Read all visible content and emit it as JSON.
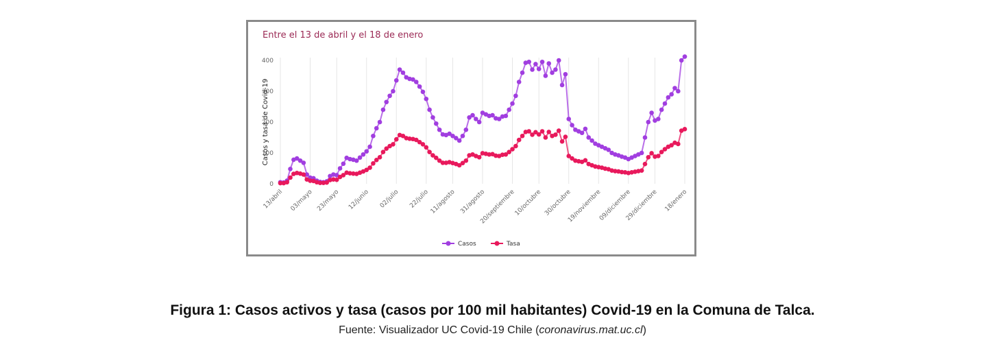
{
  "caption": {
    "title": "Figura 1: Casos activos y tasa (casos por 100 mil habitantes) Covid-19 en la Comuna de Talca.",
    "source_prefix": "Fuente: Visualizador UC Covid-19 Chile (",
    "source_link": "coronavirus.mat.uc.cl",
    "source_suffix": ")"
  },
  "chart_data": {
    "type": "line",
    "title": "Entre el 13 de abril y el 18 de enero",
    "ylabel": "Casos y tasa de Covid-19",
    "xlabel": "",
    "ylim": [
      0,
      400
    ],
    "yticks": [
      0,
      100,
      200,
      300,
      400
    ],
    "grid": "vertical",
    "legend_position": "bottom",
    "xtick_labels": [
      "13/abril",
      "03/mayo",
      "23/mayo",
      "12/junio",
      "02/julio",
      "22/julio",
      "11/agosto",
      "31/agosto",
      "20/septiembre",
      "10/octubre",
      "30/octubre",
      "19/noviembre",
      "09/diciembre",
      "29/diciembre",
      "18/enero"
    ],
    "xtick_index": [
      0,
      7,
      14,
      21,
      28,
      35,
      42,
      49,
      56,
      63,
      70,
      77,
      84,
      91,
      98
    ],
    "series": [
      {
        "name": "Casos",
        "color": "#a13ee0",
        "values": [
          5,
          4,
          10,
          48,
          78,
          82,
          75,
          68,
          30,
          20,
          18,
          10,
          6,
          5,
          8,
          25,
          30,
          28,
          50,
          65,
          84,
          80,
          78,
          75,
          85,
          95,
          105,
          120,
          155,
          180,
          200,
          240,
          265,
          285,
          300,
          335,
          370,
          360,
          345,
          340,
          338,
          330,
          315,
          298,
          275,
          240,
          215,
          195,
          175,
          160,
          158,
          162,
          155,
          148,
          140,
          155,
          175,
          215,
          222,
          210,
          200,
          230,
          225,
          220,
          222,
          212,
          210,
          218,
          220,
          240,
          260,
          285,
          330,
          360,
          392,
          395,
          370,
          388,
          372,
          395,
          350,
          390,
          360,
          370,
          400,
          320,
          355,
          210,
          190,
          175,
          170,
          165,
          178,
          150,
          140,
          130,
          125,
          120,
          115,
          110,
          100,
          95,
          92,
          88,
          85,
          80,
          85,
          90,
          95,
          100,
          150,
          200,
          230,
          205,
          210,
          240,
          260,
          280,
          290,
          310,
          300,
          400,
          412
        ]
      },
      {
        "name": "Tasa",
        "color": "#e8195c",
        "values": [
          2,
          2,
          5,
          20,
          32,
          35,
          33,
          30,
          14,
          10,
          9,
          5,
          3,
          3,
          4,
          12,
          14,
          13,
          22,
          28,
          36,
          34,
          33,
          32,
          36,
          40,
          45,
          52,
          66,
          77,
          86,
          103,
          114,
          122,
          128,
          144,
          158,
          155,
          148,
          146,
          145,
          142,
          135,
          128,
          118,
          103,
          92,
          84,
          75,
          68,
          68,
          70,
          67,
          64,
          60,
          67,
          75,
          92,
          95,
          90,
          86,
          99,
          97,
          95,
          96,
          91,
          90,
          94,
          95,
          103,
          112,
          122,
          142,
          155,
          168,
          170,
          159,
          167,
          160,
          170,
          150,
          168,
          155,
          159,
          172,
          137,
          152,
          90,
          82,
          75,
          73,
          71,
          76,
          64,
          60,
          56,
          54,
          52,
          49,
          47,
          43,
          41,
          40,
          38,
          37,
          35,
          37,
          39,
          41,
          43,
          64,
          86,
          99,
          88,
          90,
          103,
          112,
          120,
          125,
          133,
          129,
          172,
          177
        ]
      }
    ]
  }
}
